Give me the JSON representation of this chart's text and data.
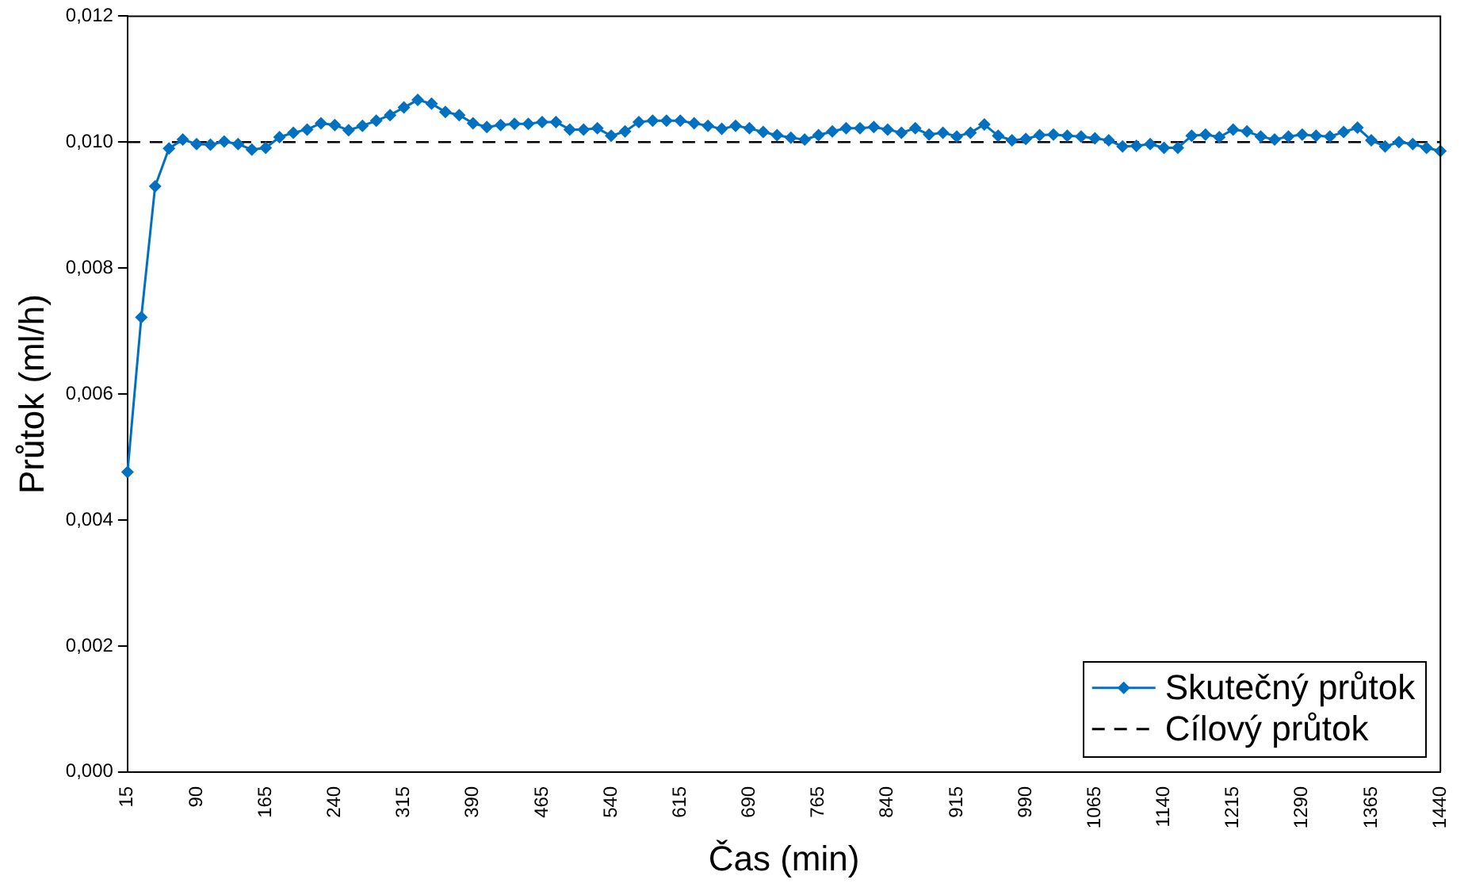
{
  "chart_data": {
    "type": "line",
    "xlabel": "Čas (min)",
    "ylabel": "Průtok (ml/h)",
    "categories": [
      "15",
      null,
      null,
      null,
      null,
      "90",
      null,
      null,
      null,
      null,
      "165",
      null,
      null,
      null,
      null,
      "240",
      null,
      null,
      null,
      null,
      "315",
      null,
      null,
      null,
      null,
      "390",
      null,
      null,
      null,
      null,
      "465",
      null,
      null,
      null,
      null,
      "540",
      null,
      null,
      null,
      null,
      "615",
      null,
      null,
      null,
      null,
      "690",
      null,
      null,
      null,
      null,
      "765",
      null,
      null,
      null,
      null,
      "840",
      null,
      null,
      null,
      null,
      "915",
      null,
      null,
      null,
      null,
      "990",
      null,
      null,
      null,
      null,
      "1065",
      null,
      null,
      null,
      null,
      "1140",
      null,
      null,
      null,
      null,
      "1215",
      null,
      null,
      null,
      null,
      "1290",
      null,
      null,
      null,
      null,
      "1365",
      null,
      null,
      null,
      null,
      "1440"
    ],
    "series": [
      {
        "name": "Skutečný průtok",
        "color": "#0070c0",
        "values": [
          0.00476,
          0.00722,
          0.0093,
          0.0099,
          0.01004,
          0.00997,
          0.00996,
          0.01001,
          0.00997,
          0.00988,
          0.00991,
          0.01008,
          0.01015,
          0.0102,
          0.0103,
          0.01027,
          0.01019,
          0.01026,
          0.01034,
          0.01043,
          0.01055,
          0.01067,
          0.01061,
          0.01048,
          0.01043,
          0.0103,
          0.01024,
          0.01027,
          0.01029,
          0.01029,
          0.01032,
          0.01032,
          0.0102,
          0.0102,
          0.01022,
          0.0101,
          0.01017,
          0.01032,
          0.01034,
          0.01034,
          0.01034,
          0.0103,
          0.01026,
          0.01021,
          0.01026,
          0.01022,
          0.01016,
          0.01011,
          0.01007,
          0.01004,
          0.01011,
          0.01017,
          0.01022,
          0.01022,
          0.01024,
          0.0102,
          0.01015,
          0.01022,
          0.01012,
          0.01015,
          0.01009,
          0.01015,
          0.01028,
          0.0101,
          0.01003,
          0.01005,
          0.01011,
          0.01012,
          0.0101,
          0.01009,
          0.01006,
          0.01003,
          0.00993,
          0.00994,
          0.00997,
          0.00991,
          0.00991,
          0.0101,
          0.01012,
          0.01008,
          0.0102,
          0.01017,
          0.01009,
          0.01004,
          0.01009,
          0.01012,
          0.0101,
          0.01009,
          0.01016,
          0.01023,
          0.01003,
          0.00993,
          0.01,
          0.00997,
          0.00991,
          0.00986
        ]
      }
    ],
    "ref_lines": [
      {
        "axis": "y",
        "value": 0.01,
        "label": "Cílový průtok",
        "color": "#000000",
        "line_style": "dashed"
      }
    ],
    "ylim": [
      0,
      0.012
    ],
    "yticks": [
      {
        "value": 0,
        "label": "0,000"
      },
      {
        "value": 0.002,
        "label": "0,002"
      },
      {
        "value": 0.004,
        "label": "0,004"
      },
      {
        "value": 0.006,
        "label": "0,006"
      },
      {
        "value": 0.008,
        "label": "0,008"
      },
      {
        "value": 0.01,
        "label": "0,010"
      },
      {
        "value": 0.012,
        "label": "0,012"
      }
    ],
    "marker": "diamond",
    "line_style": "solid",
    "grid": false,
    "legend": "bottom right"
  }
}
